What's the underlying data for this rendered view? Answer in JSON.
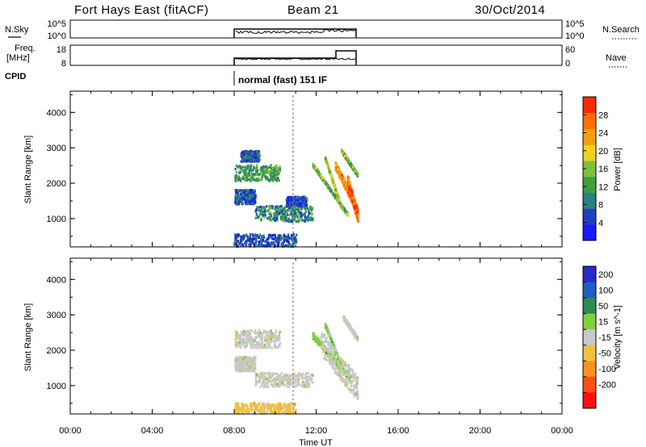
{
  "header": {
    "station": "Fort Hays East (fitACF)",
    "beam": "Beam 21",
    "date": "30/Oct/2014"
  },
  "strip_nsky": {
    "left_label": "N.Sky",
    "left_ticks": [
      "10^5",
      "10^0"
    ],
    "right_ticks": [
      "10^5",
      "10^0"
    ],
    "right_label": "N.Search"
  },
  "strip_freq": {
    "left_label_1": "Freq.",
    "left_label_2": "[MHz]",
    "left_ticks": [
      "18",
      "8"
    ],
    "right_ticks": [
      "60",
      "0"
    ],
    "right_label": "Nave"
  },
  "cpid": {
    "label": "CPID",
    "value": "normal (fast) 151 IF"
  },
  "colors": {
    "power": [
      "#1a1aff",
      "#1f3fbf",
      "#2a7f7f",
      "#3f9f3f",
      "#80c040",
      "#f0d020",
      "#f0a010",
      "#ff7000",
      "#ff2a00"
    ],
    "velocity": [
      "#2a2acc",
      "#1f5fbf",
      "#2e8b57",
      "#7fd040",
      "#c8c8c8",
      "#f0c040",
      "#ff9020",
      "#ff5010",
      "#ff1010"
    ]
  },
  "chart_data": [
    {
      "type": "heatmap",
      "name": "power",
      "x_ticks": [
        "00:00",
        "04:00",
        "08:00",
        "12:00",
        "16:00",
        "20:00",
        "00:00"
      ],
      "xlim": [
        0,
        24
      ],
      "ylabel": "Slant Range [km]",
      "ylim": [
        200,
        4600
      ],
      "y_ticks": [
        1000,
        2000,
        3000,
        4000
      ],
      "colorbar_label": "Power [dB]",
      "colorbar_ticks": [
        4,
        8,
        12,
        16,
        20,
        24,
        28
      ],
      "colorbar_range": [
        0,
        32
      ],
      "regions": [
        {
          "t": [
            8.0,
            10.2
          ],
          "r": [
            2050,
            2500
          ],
          "v": 12
        },
        {
          "t": [
            8.3,
            9.2
          ],
          "r": [
            2600,
            2900
          ],
          "v": 7
        },
        {
          "t": [
            8.0,
            9.0
          ],
          "r": [
            1400,
            1800
          ],
          "v": 6
        },
        {
          "t": [
            9.0,
            11.8
          ],
          "r": [
            900,
            1350
          ],
          "v": 10
        },
        {
          "t": [
            10.5,
            11.5
          ],
          "r": [
            1350,
            1600
          ],
          "v": 6
        },
        {
          "t": [
            8.0,
            11.0
          ],
          "r": [
            200,
            550
          ],
          "v": 6
        },
        {
          "t": [
            11.8,
            13.5
          ],
          "r": [
            2500,
            1100
          ],
          "w": 80,
          "v": 14
        },
        {
          "t": [
            12.4,
            13.2
          ],
          "r": [
            2700,
            1300
          ],
          "w": 60,
          "v": 18
        },
        {
          "t": [
            12.9,
            14.0
          ],
          "r": [
            2500,
            1200
          ],
          "w": 220,
          "v": 24
        },
        {
          "t": [
            13.2,
            14.0
          ],
          "r": [
            2900,
            2200
          ],
          "w": 80,
          "v": 14
        },
        {
          "t": [
            13.5,
            14.0
          ],
          "r": [
            2050,
            1050
          ],
          "w": 280,
          "v": 28
        }
      ]
    },
    {
      "type": "heatmap",
      "name": "velocity",
      "x_ticks": [
        "00:00",
        "04:00",
        "08:00",
        "12:00",
        "16:00",
        "20:00",
        "00:00"
      ],
      "xlim": [
        0,
        24
      ],
      "xlabel": "Time UT",
      "ylabel": "Slant Range [km]",
      "ylim": [
        200,
        4600
      ],
      "y_ticks": [
        1000,
        2000,
        3000,
        4000
      ],
      "colorbar_label": "Velocity [m s^-1]",
      "colorbar_ticks": [
        "200",
        "100",
        "50",
        "15",
        "-15",
        "-50",
        "-100",
        "-200"
      ],
      "regions": [
        {
          "t": [
            8.0,
            10.2
          ],
          "r": [
            2050,
            2550
          ],
          "c": 4
        },
        {
          "t": [
            9.0,
            11.8
          ],
          "r": [
            950,
            1350
          ],
          "c": 4
        },
        {
          "t": [
            8.0,
            9.0
          ],
          "r": [
            1400,
            1800
          ],
          "c": 4
        },
        {
          "t": [
            8.0,
            11.0
          ],
          "r": [
            200,
            500
          ],
          "c": 5
        },
        {
          "t": [
            11.8,
            13.6
          ],
          "r": [
            2400,
            1200
          ],
          "w": 160,
          "c": 3
        },
        {
          "t": [
            12.4,
            13.3
          ],
          "r": [
            2700,
            1400
          ],
          "w": 70,
          "c": 3
        },
        {
          "t": [
            12.2,
            14.0
          ],
          "r": [
            2200,
            900
          ],
          "w": 700,
          "c": 4
        },
        {
          "t": [
            13.3,
            14.0
          ],
          "r": [
            2900,
            2300
          ],
          "w": 100,
          "c": 4
        }
      ]
    }
  ]
}
